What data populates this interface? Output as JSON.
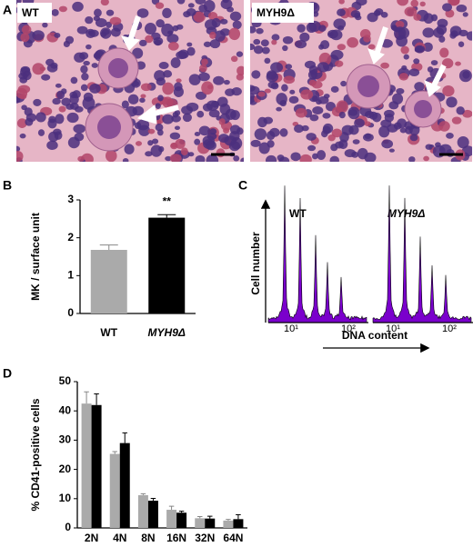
{
  "panel_labels": [
    "A",
    "B",
    "C",
    "D"
  ],
  "histology": {
    "images": [
      {
        "label": "WT"
      },
      {
        "label": "MYH9Δ"
      }
    ]
  },
  "flow": {
    "groups": [
      {
        "label": "WT"
      },
      {
        "label": "MYH9Δ"
      }
    ],
    "x_ticks": [
      "10¹",
      "10²"
    ],
    "ylabel": "Cell number",
    "xlabel": "DNA content"
  },
  "chart_data": [
    {
      "type": "bar",
      "ylabel": "MK / surface unit",
      "categories": [
        "WT",
        "MYH9Δ"
      ],
      "values": [
        1.68,
        2.53
      ],
      "errors": [
        0.13,
        0.08
      ],
      "colors": [
        "#aaaaaa",
        "#000000"
      ],
      "annotation": "**",
      "ylim": [
        0,
        3
      ],
      "yticks": [
        0,
        1,
        2,
        3
      ]
    },
    {
      "type": "grouped-bar",
      "ylabel": "% CD41-positive cells",
      "categories": [
        "2N",
        "4N",
        "8N",
        "16N",
        "32N",
        "64N"
      ],
      "series": [
        {
          "color": "#aaaaaa",
          "values": [
            42.5,
            25.3,
            11.2,
            6.2,
            3.3,
            2.5
          ],
          "errors": [
            4,
            0.8,
            0.5,
            1.2,
            0.6,
            0.4
          ]
        },
        {
          "color": "#000000",
          "values": [
            42.0,
            29.0,
            9.3,
            5.2,
            3.2,
            3.0
          ],
          "errors": [
            3.8,
            3.5,
            0.8,
            0.5,
            0.8,
            1.5
          ]
        }
      ],
      "ylim": [
        0,
        50
      ],
      "yticks": [
        0,
        10,
        20,
        30,
        40,
        50
      ]
    }
  ]
}
